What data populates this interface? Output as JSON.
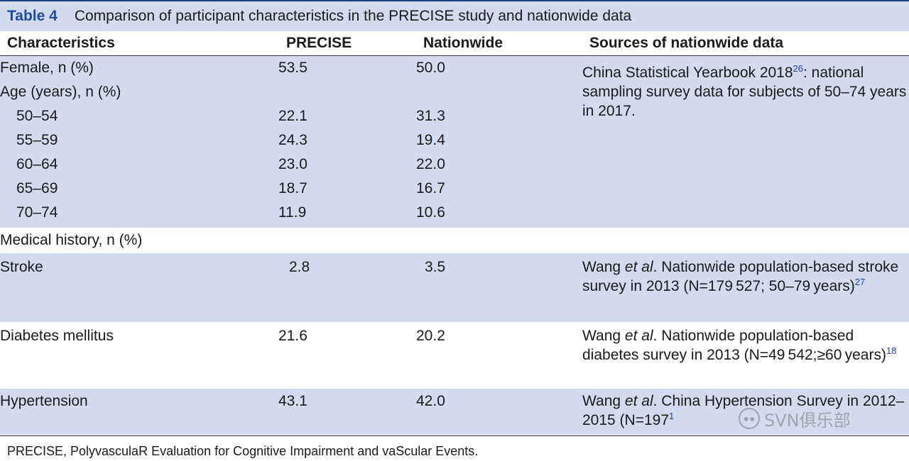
{
  "title": {
    "label": "Table 4",
    "text": "Comparison of participant characteristics in the PRECISE study and nationwide data"
  },
  "headers": {
    "characteristics": "Characteristics",
    "precise": "PRECISE",
    "nationwide": "Nationwide",
    "sources": "Sources of nationwide data"
  },
  "female": {
    "label": "Female, n (%)",
    "precise": "53.5",
    "nationwide": "50.0"
  },
  "age": {
    "label": "Age (years), n (%)",
    "rows": [
      {
        "label": "50–54",
        "precise": "22.1",
        "nationwide": "31.3"
      },
      {
        "label": "55–59",
        "precise": "24.3",
        "nationwide": "19.4"
      },
      {
        "label": "60–64",
        "precise": "23.0",
        "nationwide": "22.0"
      },
      {
        "label": "65–69",
        "precise": "18.7",
        "nationwide": "16.7"
      },
      {
        "label": "70–74",
        "precise": "11.9",
        "nationwide": "10.6"
      }
    ],
    "source_pre": "China Statistical Yearbook 2018",
    "source_ref": "26",
    "source_post": ": national sampling survey data for subjects of 50–74 years in 2017."
  },
  "medical": {
    "label": "Medical history, n (%)",
    "stroke": {
      "label": "Stroke",
      "precise": "2.8",
      "nationwide": "3.5",
      "src_author": "Wang ",
      "src_etal": "et al",
      "src_text": ". Nationwide population-based stroke survey in 2013 (N=179 527; 50–79 years)",
      "src_ref": "27"
    },
    "diabetes": {
      "label": "Diabetes mellitus",
      "precise": "21.6",
      "nationwide": "20.2",
      "src_author": "Wang ",
      "src_etal": "et al",
      "src_text": ". Nationwide population-based diabetes survey in 2013 (N=49 542;≥60 years)",
      "src_ref": "18"
    },
    "hypertension": {
      "label": "Hypertension",
      "precise": "43.1",
      "nationwide": "42.0",
      "src_author": "Wang ",
      "src_etal": "et al",
      "src_text": ". China Hypertension Survey in 2012–2015 (N=197",
      "src_ref": "1"
    }
  },
  "footnote": "PRECISE, PolyvasculaR Evaluation for Cognitive Impairment and vaScular Events.",
  "watermark": {
    "text": "SVN俱乐部",
    "icon": "wechat-icon"
  }
}
